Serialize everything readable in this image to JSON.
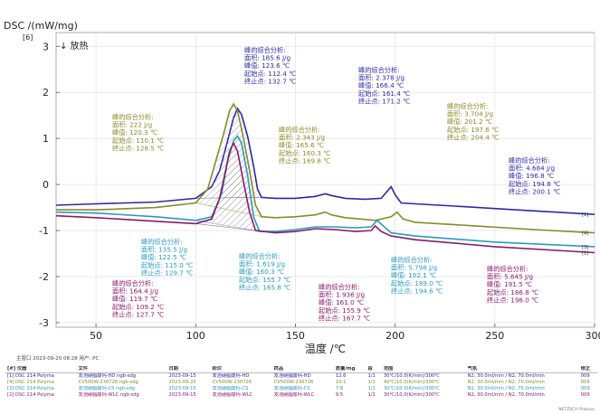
{
  "chart_data": {
    "type": "line",
    "title": "",
    "ylabel": "DSC /(mW/mg)",
    "y_unit_marker": "[6]",
    "exo_label": "↓ 放热",
    "xlabel": "温度 /℃",
    "xlim": [
      30,
      300
    ],
    "ylim": [
      -3.1,
      3.3
    ],
    "x_ticks": [
      "50",
      "100",
      "150",
      "200",
      "250",
      "300"
    ],
    "y_ticks": [
      "3",
      "2",
      "1",
      "0",
      "-1",
      "-2",
      "-3"
    ],
    "grid": true,
    "series": [
      {
        "color": "#2a2aa8",
        "end_label": "[1]",
        "points": [
          [
            30,
            -0.45
          ],
          [
            50,
            -0.42
          ],
          [
            80,
            -0.38
          ],
          [
            100,
            -0.3
          ],
          [
            108,
            -0.05
          ],
          [
            112,
            0.3
          ],
          [
            116,
            0.95
          ],
          [
            119,
            1.45
          ],
          [
            121,
            1.65
          ],
          [
            123,
            1.52
          ],
          [
            126,
            1.05
          ],
          [
            129,
            0.4
          ],
          [
            131,
            -0.1
          ],
          [
            133,
            -0.28
          ],
          [
            140,
            -0.3
          ],
          [
            150,
            -0.3
          ],
          [
            160,
            -0.26
          ],
          [
            165,
            -0.2
          ],
          [
            168,
            -0.24
          ],
          [
            175,
            -0.3
          ],
          [
            185,
            -0.32
          ],
          [
            193,
            -0.3
          ],
          [
            196,
            -0.15
          ],
          [
            198,
            -0.05
          ],
          [
            200,
            -0.22
          ],
          [
            203,
            -0.4
          ],
          [
            210,
            -0.42
          ],
          [
            230,
            -0.47
          ],
          [
            260,
            -0.55
          ],
          [
            300,
            -0.65
          ]
        ]
      },
      {
        "color": "#8a8a2a",
        "end_label": "[4]",
        "points": [
          [
            30,
            -0.55
          ],
          [
            50,
            -0.55
          ],
          [
            80,
            -0.5
          ],
          [
            100,
            -0.4
          ],
          [
            106,
            -0.1
          ],
          [
            110,
            0.5
          ],
          [
            114,
            1.1
          ],
          [
            117,
            1.6
          ],
          [
            119,
            1.75
          ],
          [
            121,
            1.6
          ],
          [
            124,
            1.0
          ],
          [
            127,
            0.3
          ],
          [
            130,
            -0.45
          ],
          [
            133,
            -0.7
          ],
          [
            140,
            -0.72
          ],
          [
            150,
            -0.7
          ],
          [
            160,
            -0.66
          ],
          [
            165,
            -0.6
          ],
          [
            168,
            -0.66
          ],
          [
            175,
            -0.72
          ],
          [
            190,
            -0.78
          ],
          [
            198,
            -0.7
          ],
          [
            201,
            -0.6
          ],
          [
            204,
            -0.75
          ],
          [
            210,
            -0.82
          ],
          [
            240,
            -0.9
          ],
          [
            270,
            -0.98
          ],
          [
            300,
            -1.05
          ]
        ]
      },
      {
        "color": "#2a9ac0",
        "end_label": "[3]",
        "points": [
          [
            30,
            -0.6
          ],
          [
            50,
            -0.62
          ],
          [
            80,
            -0.7
          ],
          [
            100,
            -0.78
          ],
          [
            108,
            -0.7
          ],
          [
            113,
            -0.2
          ],
          [
            116,
            0.5
          ],
          [
            119,
            0.95
          ],
          [
            121,
            1.05
          ],
          [
            123,
            0.9
          ],
          [
            126,
            0.2
          ],
          [
            129,
            -0.7
          ],
          [
            132,
            -1.02
          ],
          [
            140,
            -1.02
          ],
          [
            150,
            -0.98
          ],
          [
            160,
            -0.92
          ],
          [
            170,
            -0.92
          ],
          [
            180,
            -0.94
          ],
          [
            188,
            -0.92
          ],
          [
            191,
            -0.78
          ],
          [
            194,
            -0.9
          ],
          [
            198,
            -1.05
          ],
          [
            210,
            -1.12
          ],
          [
            250,
            -1.25
          ],
          [
            300,
            -1.35
          ]
        ]
      },
      {
        "color": "#8a1a6a",
        "end_label": "[2]",
        "points": [
          [
            30,
            -0.68
          ],
          [
            50,
            -0.72
          ],
          [
            80,
            -0.8
          ],
          [
            100,
            -0.85
          ],
          [
            108,
            -0.75
          ],
          [
            112,
            -0.3
          ],
          [
            115,
            0.3
          ],
          [
            117,
            0.72
          ],
          [
            119,
            0.9
          ],
          [
            121,
            0.72
          ],
          [
            124,
            0.05
          ],
          [
            127,
            -0.6
          ],
          [
            130,
            -1.0
          ],
          [
            140,
            -1.05
          ],
          [
            150,
            -1.02
          ],
          [
            160,
            -0.96
          ],
          [
            170,
            -0.98
          ],
          [
            180,
            -1.02
          ],
          [
            188,
            -1.0
          ],
          [
            190,
            -0.9
          ],
          [
            193,
            -1.02
          ],
          [
            198,
            -1.12
          ],
          [
            210,
            -1.2
          ],
          [
            250,
            -1.35
          ],
          [
            300,
            -1.48
          ]
        ]
      }
    ],
    "annotations": [
      {
        "color": "#2a2aa8",
        "lines": [
          "峰的综合分析:",
          "面积:   185.6 J/g",
          "峰值:   123.6 ℃",
          "起始点: 112.4 ℃",
          "终止点: 132.7 ℃"
        ]
      },
      {
        "color": "#2a2aa8",
        "lines": [
          "峰的综合分析:",
          "面积:   2.378 J/g",
          "峰值:   166.4 ℃",
          "起始点: 161.4 ℃",
          "终止点: 171.2 ℃"
        ]
      },
      {
        "color": "#8a8a2a",
        "lines": [
          "峰的综合分析:",
          "面积:   222 J/g",
          "峰值:   120.3 ℃",
          "起始点: 110.1 ℃",
          "终止点: 128.5 ℃"
        ]
      },
      {
        "color": "#8a8a2a",
        "lines": [
          "峰的综合分析:",
          "面积:   2.343 J/g",
          "峰值:   165.6 ℃",
          "起始点: 160.3 ℃",
          "终止点: 169.8 ℃"
        ]
      },
      {
        "color": "#8a8a2a",
        "lines": [
          "峰的综合分析:",
          "面积:   3.704 J/g",
          "峰值:   201.2 ℃",
          "起始点: 197.6 ℃",
          "终止点: 204.4 ℃"
        ]
      },
      {
        "color": "#2a2aa8",
        "lines": [
          "峰的综合分析:",
          "面积:   4.684 J/g",
          "峰值:   196.8 ℃",
          "起始点: 194.8 ℃",
          "终止点: 200.1 ℃"
        ]
      },
      {
        "color": "#2a9ac0",
        "lines": [
          "峰的综合分析:",
          "面积:   135.5 J/g",
          "峰值:   122.5 ℃",
          "起始点: 115.0 ℃",
          "终止点: 129.7 ℃"
        ]
      },
      {
        "color": "#2a9ac0",
        "lines": [
          "峰的综合分析:",
          "面积:   1.619 J/g",
          "峰值:   160.3 ℃",
          "起始点: 155.7 ℃",
          "终止点: 165.8 ℃"
        ]
      },
      {
        "color": "#8a1a6a",
        "lines": [
          "峰的综合分析:",
          "面积:   164.4 J/g",
          "峰值:   119.7 ℃",
          "起始点: 109.2 ℃",
          "终止点: 127.7 ℃"
        ]
      },
      {
        "color": "#8a1a6a",
        "lines": [
          "峰的综合分析:",
          "面积:   1.936 J/g",
          "峰值:   161.0 ℃",
          "起始点: 155.9 ℃",
          "终止点: 167.7 ℃"
        ]
      },
      {
        "color": "#2a9ac0",
        "lines": [
          "峰的综合分析:",
          "面积:   5.798 J/g",
          "峰值:   192.1 ℃",
          "起始点: 189.0 ℃",
          "终止点: 194.6 ℃"
        ]
      },
      {
        "color": "#8a1a6a",
        "lines": [
          "峰的综合分析:",
          "面积:   5.645 J/g",
          "峰值:   191.5 ℃",
          "起始点: 186.8 ℃",
          "终止点: 196.0 ℃"
        ]
      }
    ]
  },
  "footer": {
    "created": "主窗口  2023-09-20 08:28  用户: PC"
  },
  "legend_table": {
    "headers": [
      "[#] 仪器",
      "文件",
      "日期",
      "标识",
      "样品",
      "质量/mg",
      "段",
      "范围",
      "气氛",
      "修正"
    ],
    "rows": [
      {
        "color": "#2a2aa8",
        "cells": [
          "[1] DSC 214 Polyma",
          "发泡硬脂酸钙-HD ngb-sdg",
          "2023-09-15",
          "发泡硬脂酸钙-HD",
          "发泡硬脂酸钙-HD",
          "12.6",
          "1/1",
          "30℃/10.0(K/min)/300℃",
          "N2, 30.0ml/min / N2, 70.0ml/min",
          "009"
        ]
      },
      {
        "color": "#8a8a2a",
        "cells": [
          "[4] DSC 214 Polyma",
          "CV500W-230726 ngb-sdg",
          "2023-09-20",
          "CV500W-230726",
          "CV500W-230726",
          "10.1",
          "1/1",
          "40℃/10.0(K/min)/300℃",
          "N2, 30.0ml/min / N2, 70.0ml/min",
          "009"
        ]
      },
      {
        "color": "#2a9ac0",
        "cells": [
          "[3] DSC 214 Polyma",
          "发泡硬脂酸钙-CS ngb-sdg",
          "2023-09-15",
          "发泡硬脂酸钙-CS",
          "发泡硬脂酸钙-CS",
          "7.8",
          "1/1",
          "30℃/10.0(K/min)/300℃",
          "N2, 30.0ml/min / N2, 70.0ml/min",
          "009"
        ]
      },
      {
        "color": "#8a1a6a",
        "cells": [
          "[2] DSC 214 Polyma",
          "发泡硬脂酸钙-WLC ngb-sdg",
          "2023-09-15",
          "发泡硬脂酸钙-WLC",
          "发泡硬脂酸钙-WLC",
          "9.5",
          "1/1",
          "30℃/10.0(K/min)/300℃",
          "N2, 30.0ml/min / N2, 70.0ml/min",
          "009"
        ]
      }
    ]
  },
  "watermark": "NETZSCH Proteus"
}
